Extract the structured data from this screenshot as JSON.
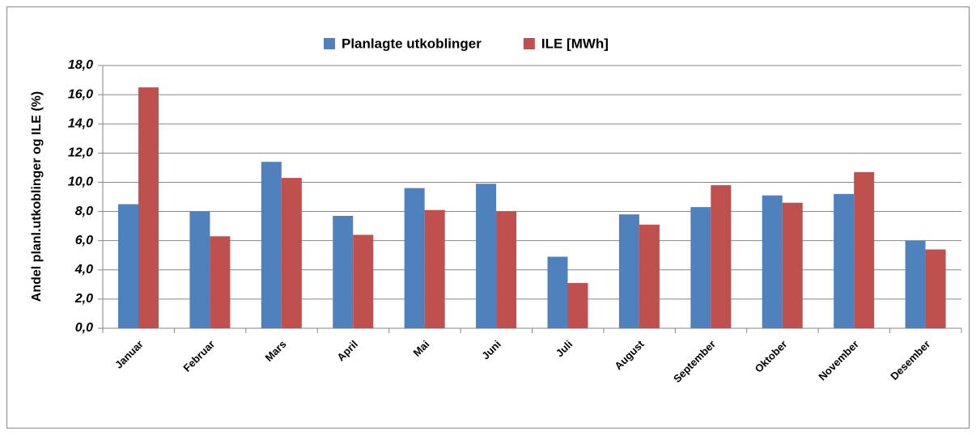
{
  "chart_data": {
    "type": "bar",
    "y_label": "Andel planl.utkoblinger og ILE (%)",
    "categories": [
      "Januar",
      "Februar",
      "Mars",
      "April",
      "Mai",
      "Juni",
      "Juli",
      "August",
      "September",
      "Oktober",
      "November",
      "Desember"
    ],
    "series": [
      {
        "name": "Planlagte utkoblinger",
        "color": "#4f81bd",
        "values": [
          8.5,
          8.0,
          11.4,
          7.7,
          9.6,
          9.9,
          4.9,
          7.8,
          8.3,
          9.1,
          9.2,
          6.0
        ]
      },
      {
        "name": "ILE [MWh]",
        "color": "#c0504d",
        "values": [
          16.5,
          6.3,
          10.3,
          6.4,
          8.1,
          8.0,
          3.1,
          7.1,
          9.8,
          8.6,
          10.7,
          5.4
        ]
      }
    ],
    "ylim": [
      0,
      18
    ],
    "yticks": [
      {
        "value": 0,
        "label": "0,0"
      },
      {
        "value": 2,
        "label": "2,0"
      },
      {
        "value": 4,
        "label": "4,0"
      },
      {
        "value": 6,
        "label": "6,0"
      },
      {
        "value": 8,
        "label": "8,0"
      },
      {
        "value": 10,
        "label": "10,0"
      },
      {
        "value": 12,
        "label": "12,0"
      },
      {
        "value": 14,
        "label": "14,0"
      },
      {
        "value": 16,
        "label": "16,0"
      },
      {
        "value": 18,
        "label": "18,0"
      }
    ],
    "grid": true,
    "legend": "top"
  }
}
